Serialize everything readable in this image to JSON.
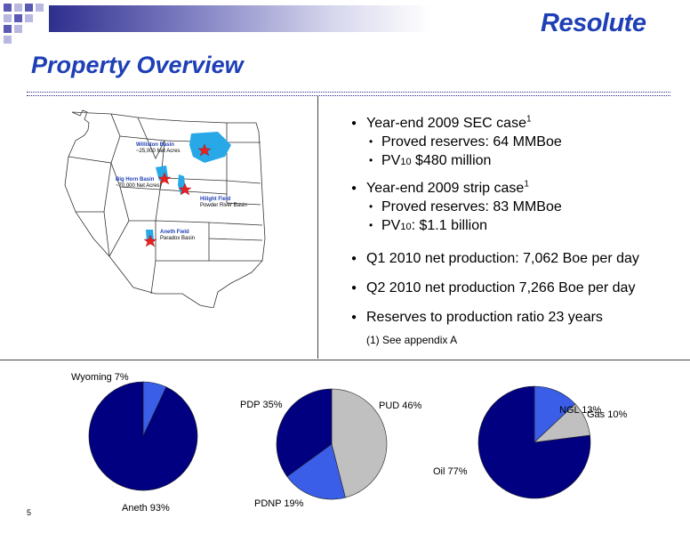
{
  "brand": {
    "logo_text": "Resolute",
    "accent": "#1f3fb6"
  },
  "slide": {
    "title": "Property Overview",
    "page_number": "5"
  },
  "map": {
    "labels": [
      {
        "name": "Williston Basin",
        "sub": "~25,000 Net Acres"
      },
      {
        "name": "Big Horn Basin",
        "sub": "~70,000 Net Acres"
      },
      {
        "name": "Hilight Field",
        "sub": "Powder River Basin"
      },
      {
        "name": "Aneth Field",
        "sub": "Paradox Basin"
      }
    ]
  },
  "bullets": {
    "b1_text": "Year-end 2009 SEC case",
    "b1_sup": "1",
    "b1_sub1": "Proved reserves:  64 MMBoe",
    "b1_sub2_pre": "PV",
    "b1_sub2_sub": "10",
    "b1_sub2_post": " $480 million",
    "b2_text": "Year-end 2009 strip case",
    "b2_sup": "1",
    "b2_sub1": "Proved reserves:  83 MMBoe",
    "b2_sub2_pre": "PV",
    "b2_sub2_sub": "10",
    "b2_sub2_post": ":  $1.1 billion",
    "b3": "Q1 2010 net production: 7,062 Boe per day",
    "b4": "Q2 2010 net production 7,266 Boe per day",
    "b5": "Reserves to production ratio 23 years",
    "note": "(1) See appendix A"
  },
  "chart_data": [
    {
      "type": "pie",
      "slices": [
        {
          "label": "Wyoming 7%",
          "value": 7,
          "color": "#3a5ee8"
        },
        {
          "label": "Aneth 93%",
          "value": 93,
          "color": "#000080"
        }
      ]
    },
    {
      "type": "pie",
      "slices": [
        {
          "label": "PUD 46%",
          "value": 46,
          "color": "#c0c0c0"
        },
        {
          "label": "PDNP 19%",
          "value": 19,
          "color": "#3a5ee8"
        },
        {
          "label": "PDP 35%",
          "value": 35,
          "color": "#000080"
        }
      ]
    },
    {
      "type": "pie",
      "slices": [
        {
          "label": "NGL 13%",
          "value": 13,
          "color": "#3a5ee8"
        },
        {
          "label": "Gas 10%",
          "value": 10,
          "color": "#c0c0c0"
        },
        {
          "label": "Oil 77%",
          "value": 77,
          "color": "#000080"
        }
      ]
    }
  ]
}
